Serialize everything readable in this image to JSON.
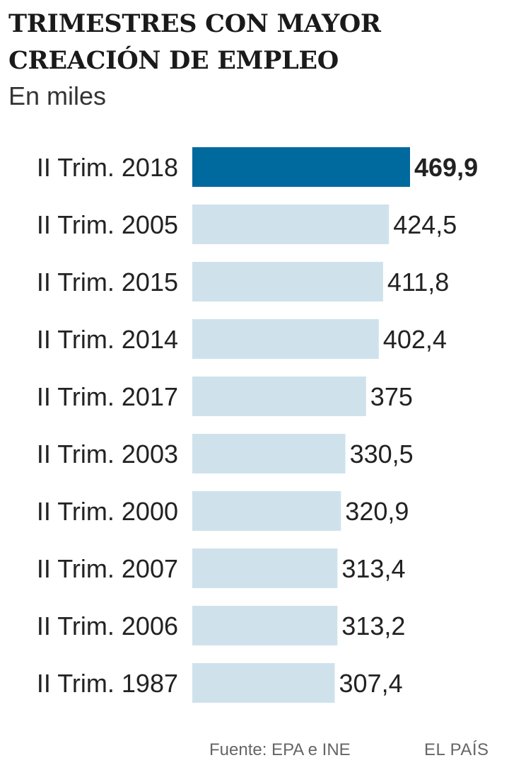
{
  "header": {
    "title_line1": "TRIMESTRES CON MAYOR",
    "title_line2": "CREACIÓN DE EMPLEO",
    "subtitle": "En miles"
  },
  "chart_data": {
    "type": "bar",
    "orientation": "horizontal",
    "title": "TRIMESTRES CON MAYOR CREACIÓN DE EMPLEO",
    "subtitle": "En miles",
    "categories": [
      "II Trim. 2018",
      "II Trim. 2005",
      "II Trim. 2015",
      "II Trim. 2014",
      "II Trim. 2017",
      "II Trim. 2003",
      "II Trim. 2000",
      "II Trim. 2007",
      "II Trim. 2006",
      "II Trim. 1987"
    ],
    "values": [
      469.9,
      424.5,
      411.8,
      402.4,
      375,
      330.5,
      320.9,
      313.4,
      313.2,
      307.4
    ],
    "value_labels": [
      "469,9",
      "424,5",
      "411,8",
      "402,4",
      "375",
      "330,5",
      "320,9",
      "313,4",
      "313,2",
      "307,4"
    ],
    "highlight_index": 0,
    "colors": {
      "highlight": "#00699e",
      "default": "#cfe2ec"
    },
    "xlim": [
      0,
      469.9
    ],
    "grid": false,
    "legend": "none"
  },
  "footer": {
    "source": "Fuente: EPA e INE",
    "brand": "EL PAÍS"
  }
}
